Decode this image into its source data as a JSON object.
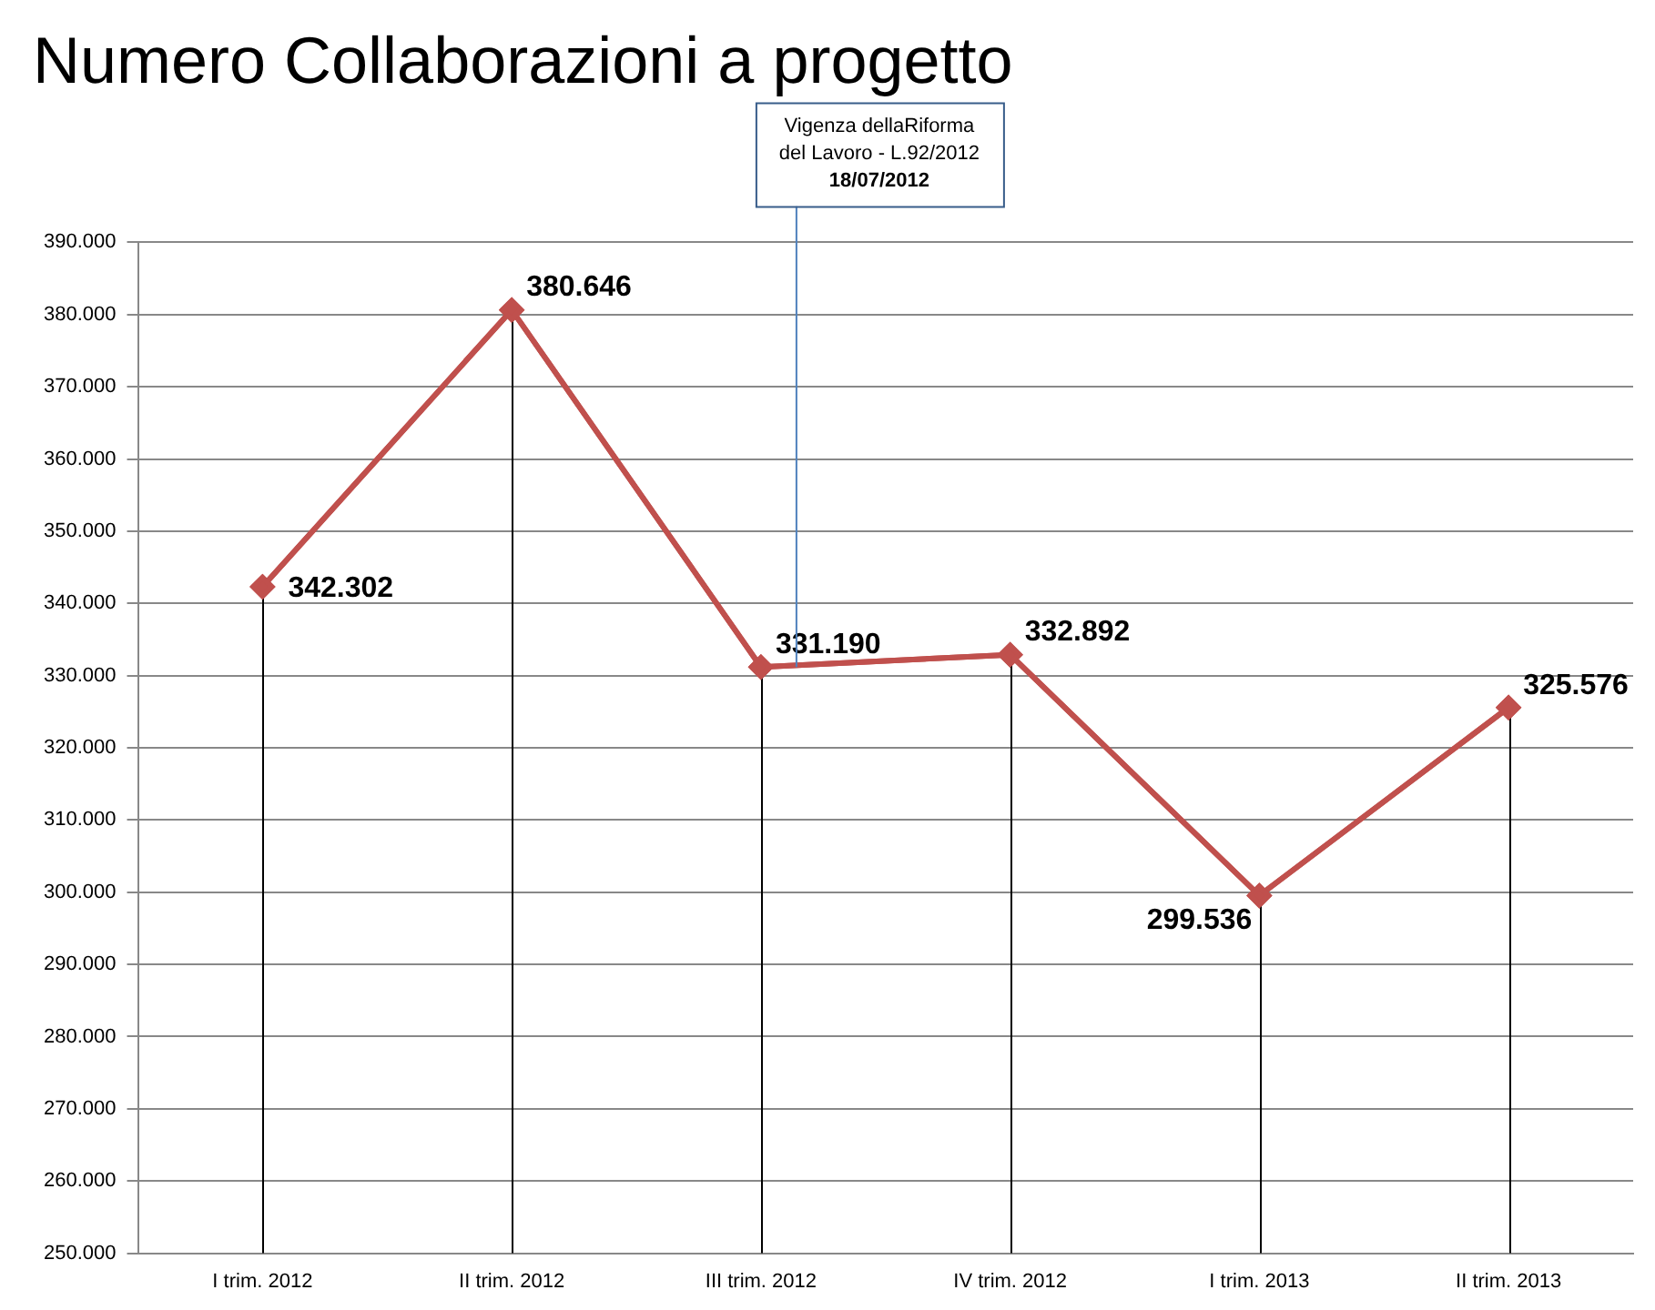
{
  "chart_data": {
    "type": "line",
    "title": "Numero Collaborazioni a progetto",
    "categories": [
      "I trim. 2012",
      "II trim. 2012",
      "III trim. 2012",
      "IV trim. 2012",
      "I trim. 2013",
      "II trim. 2013"
    ],
    "series": [
      {
        "color": "#c0504d",
        "values": [
          342302,
          380646,
          331190,
          332892,
          299536,
          325576
        ],
        "value_labels": [
          "342.302",
          "380.646",
          "331.190",
          "332.892",
          "299.536",
          "325.576"
        ],
        "errors": [
          [
            250000,
            342302
          ],
          [
            250000,
            380646
          ],
          [
            250000,
            331190
          ],
          [
            250000,
            332892
          ],
          [
            250000,
            299536
          ],
          [
            250000,
            325576
          ]
        ]
      }
    ],
    "ylim": [
      250000,
      390000
    ],
    "yticks": [
      {
        "value": 250000,
        "label": "250.000"
      },
      {
        "value": 260000,
        "label": "260.000"
      },
      {
        "value": 270000,
        "label": "270.000"
      },
      {
        "value": 280000,
        "label": "280.000"
      },
      {
        "value": 290000,
        "label": "290.000"
      },
      {
        "value": 300000,
        "label": "300.000"
      },
      {
        "value": 310000,
        "label": "310.000"
      },
      {
        "value": 320000,
        "label": "320.000"
      },
      {
        "value": 330000,
        "label": "330.000"
      },
      {
        "value": 340000,
        "label": "340.000"
      },
      {
        "value": 350000,
        "label": "350.000"
      },
      {
        "value": 360000,
        "label": "360.000"
      },
      {
        "value": 370000,
        "label": "370.000"
      },
      {
        "value": 380000,
        "label": "380.000"
      },
      {
        "value": 390000,
        "label": "390.000"
      }
    ],
    "ref_lines": [
      {
        "axis": "x",
        "value": "III trim. 2012",
        "label": "Vigenza dellaRiforma\ndel Lavoro - L.92/2012\n18/07/2012",
        "color": "#4f81bd"
      }
    ],
    "grid": "y",
    "legend": false,
    "marker": "diamond",
    "line_style": "solid"
  }
}
